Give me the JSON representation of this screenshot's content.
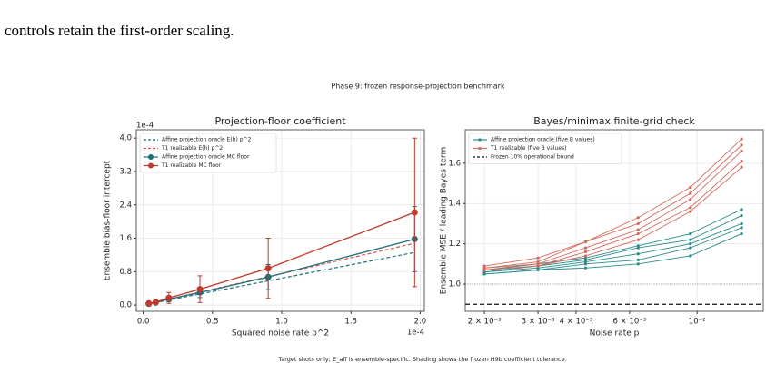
{
  "body_text": "controls retain the first-order scaling.",
  "figure_title": "Phase 9: frozen response-projection benchmark",
  "caption": "Target shots only; E_aff is ensemble-specific. Shading shows the frozen H9b coefficient tolerance.",
  "chart_data": [
    {
      "type": "line",
      "title": "Projection-floor coefficient",
      "x_label": "Squared noise rate p^2",
      "y_label": "Ensemble bias-floor intercept",
      "x_offset_label": "1e-4",
      "y_offset_label": "1e-4",
      "x": [
        0.04,
        0.09,
        0.1849,
        0.4096,
        0.9025,
        1.96
      ],
      "xlim": [
        -0.05,
        2.03
      ],
      "ylim": [
        -0.15,
        4.2
      ],
      "xticks": [
        {
          "value": 0,
          "label": "0.0"
        },
        0.5,
        {
          "value": 1,
          "label": "1.0"
        },
        1.5,
        {
          "value": 2,
          "label": "2.0"
        }
      ],
      "yticks": [
        {
          "value": 0,
          "label": "0.0"
        },
        0.8,
        1.6,
        2.4,
        3.2,
        {
          "value": 4,
          "label": "4.0"
        }
      ],
      "grid": true,
      "legend": "upper left",
      "series": [
        {
          "name": "Affine projection oracle E(h) p^2",
          "color": "#1f6f78",
          "linestyle": "dashed",
          "marker": false,
          "values": [
            0.026,
            0.058,
            0.12,
            0.265,
            0.58,
            1.26
          ]
        },
        {
          "name": "T1 realizable E(h) p^2",
          "color": "#d9534f",
          "linestyle": "dashed",
          "marker": false,
          "values": [
            0.03,
            0.068,
            0.14,
            0.31,
            0.68,
            1.48
          ]
        },
        {
          "name": "Affine projection oracle MC floor",
          "color": "#1b6f74",
          "linestyle": "solid",
          "marker": true,
          "values": [
            0.03,
            0.06,
            0.14,
            0.3,
            0.67,
            1.58
          ],
          "errors": [
            0.01,
            0.02,
            0.06,
            0.12,
            0.3,
            0.78
          ]
        },
        {
          "name": "T1 realizable MC floor",
          "color": "#c0392b",
          "linestyle": "solid",
          "marker": true,
          "values": [
            0.04,
            0.07,
            0.17,
            0.38,
            0.88,
            2.22
          ],
          "errors": [
            0.02,
            0.04,
            0.13,
            0.32,
            0.72,
            1.78
          ]
        }
      ]
    },
    {
      "type": "multiline",
      "title": "Bayes/minimax finite-grid check",
      "x_label": "Noise rate p",
      "y_label": "Ensemble MSE / leading Bayes term",
      "x": [
        0.002,
        0.003,
        0.0043,
        0.0064,
        0.0095,
        0.014
      ],
      "xscale": "log",
      "xlim": [
        0.00173,
        0.0165
      ],
      "ylim": [
        0.865,
        1.766
      ],
      "xticks": [
        {
          "value": 0.002,
          "label": "2 × 10⁻³"
        },
        {
          "value": 0.003,
          "label": "3 × 10⁻³"
        },
        {
          "value": 0.004,
          "label": "4 × 10⁻³"
        },
        {
          "value": 0.006,
          "label": "6 × 10⁻³"
        },
        {
          "value": 0.01,
          "label": "10⁻²"
        }
      ],
      "yticks": [
        {
          "value": 1,
          "label": "1.0"
        },
        1.2,
        1.4,
        1.6
      ],
      "grid": true,
      "legend": "upper left",
      "groups": [
        {
          "name": "Affine projection oracle (five B values)",
          "color": "#2a8c8c",
          "lines": [
            [
              1.07,
              1.1,
              1.13,
              1.19,
              1.25,
              1.37
            ],
            [
              1.06,
              1.09,
              1.12,
              1.18,
              1.22,
              1.34
            ],
            [
              1.06,
              1.08,
              1.11,
              1.15,
              1.2,
              1.3
            ],
            [
              1.05,
              1.07,
              1.1,
              1.12,
              1.18,
              1.28
            ],
            [
              1.05,
              1.07,
              1.08,
              1.1,
              1.14,
              1.25
            ]
          ]
        },
        {
          "name": "T1 realizable (five B values)",
          "color": "#d46a5e",
          "lines": [
            [
              1.09,
              1.13,
              1.21,
              1.33,
              1.48,
              1.72
            ],
            [
              1.08,
              1.11,
              1.21,
              1.3,
              1.45,
              1.69
            ],
            [
              1.08,
              1.1,
              1.18,
              1.27,
              1.42,
              1.66
            ],
            [
              1.07,
              1.09,
              1.16,
              1.25,
              1.38,
              1.61
            ],
            [
              1.07,
              1.09,
              1.14,
              1.22,
              1.36,
              1.58
            ]
          ]
        }
      ],
      "hlines": [
        {
          "name": "Frozen 10% operational bound",
          "value": 0.9,
          "color": "#111111",
          "linestyle": "dashed"
        }
      ],
      "reference_lines": [
        {
          "value": 1.0,
          "color": "#888888"
        }
      ]
    }
  ]
}
